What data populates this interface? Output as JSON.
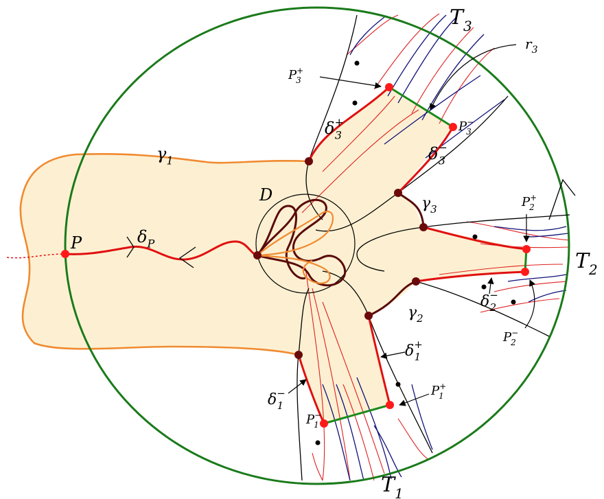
{
  "labels": [
    {
      "base": "T",
      "sub": "3"
    },
    {
      "base": "T",
      "sub": "2"
    },
    {
      "base": "T",
      "sub": "1"
    },
    {
      "base": "r",
      "sub": "3"
    },
    {
      "base": "P",
      "sub": "3",
      "sup": "+"
    },
    {
      "base": "P",
      "sub": "3",
      "sup": "−"
    },
    {
      "base": "δ",
      "sub": "3",
      "sup": "+"
    },
    {
      "base": "δ",
      "sub": "3",
      "sup": "−"
    },
    {
      "base": "γ",
      "sub": "1"
    },
    {
      "base": "γ",
      "sub": "3"
    },
    {
      "base": "P",
      "sub": "2",
      "sup": "+"
    },
    {
      "base": "P",
      "sub": "2",
      "sup": "−"
    },
    {
      "base": "δ",
      "sub": "2",
      "sup": "−"
    },
    {
      "base": "δ",
      "sub": "1",
      "sup": "+"
    },
    {
      "base": "δ",
      "sub": "1",
      "sup": "−"
    },
    {
      "base": "P",
      "sub": "1",
      "sup": "+"
    },
    {
      "base": "P",
      "sub": "1",
      "sup": "−"
    },
    {
      "base": "γ",
      "sub": "2"
    },
    {
      "base": "D"
    },
    {
      "base": "P"
    },
    {
      "base": "δ",
      "sub": "P"
    }
  ]
}
